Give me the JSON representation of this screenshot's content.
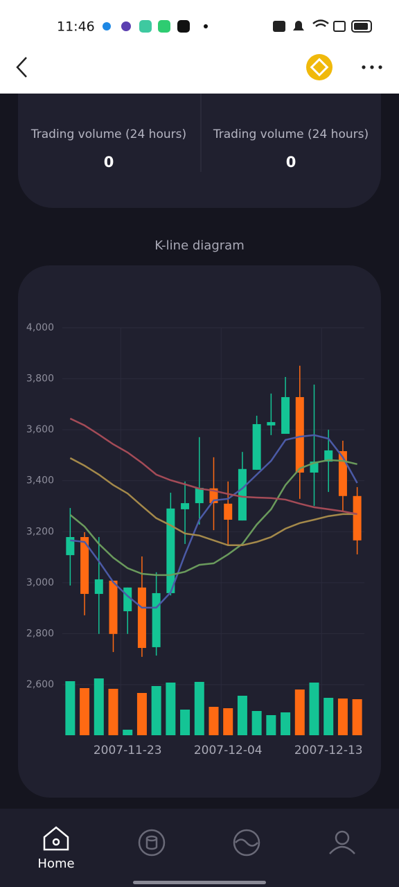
{
  "status_bar": {
    "time": "11:46"
  },
  "stats": [
    {
      "label": "Trading volume (24 hours)",
      "value": 0
    },
    {
      "label": "Trading volume (24 hours)",
      "value": 0
    }
  ],
  "section_title": "K-line diagram",
  "chart_data": {
    "type": "candlestick",
    "categories": [
      null,
      null,
      null,
      null,
      "2007-11-23",
      null,
      null,
      null,
      null,
      null,
      null,
      "2007-12-04",
      null,
      null,
      null,
      null,
      null,
      null,
      "2007-12-13",
      null,
      null
    ],
    "open": [
      3108,
      3179,
      2956,
      3008,
      2888,
      2981,
      2747,
      2959,
      3288,
      3312,
      3370,
      3310,
      3244,
      3443,
      3617,
      3584,
      3728,
      3432,
      3475,
      3516,
      3340
    ],
    "close": [
      3179,
      2956,
      3013,
      2799,
      2981,
      2744,
      2959,
      3291,
      3312,
      3372,
      3312,
      3247,
      3446,
      3622,
      3630,
      3728,
      3432,
      3475,
      3519,
      3340,
      3166
    ],
    "high": [
      3293,
      3198,
      3179,
      3008,
      2981,
      3103,
      3041,
      3353,
      3397,
      3571,
      3492,
      3397,
      3513,
      3655,
      3742,
      3807,
      3851,
      3777,
      3600,
      3557,
      3375
    ],
    "low": [
      2989,
      2872,
      2799,
      2728,
      2799,
      2709,
      2714,
      2950,
      3152,
      3228,
      3206,
      3144,
      3244,
      3443,
      3579,
      3584,
      3329,
      3301,
      3356,
      3280,
      3111
    ],
    "up_color": "#14c495",
    "down_color": "#ff6a13",
    "ylim": [
      2600,
      4000
    ],
    "yticks": [
      {
        "value": 2600,
        "label": "2,600"
      },
      {
        "value": 2800,
        "label": "2,800"
      },
      {
        "value": 3000,
        "label": "3,000"
      },
      {
        "value": 3200,
        "label": "3,200"
      },
      {
        "value": 3400,
        "label": "3,400"
      },
      {
        "value": 3600,
        "label": "3,600"
      },
      {
        "value": 3800,
        "label": "3,800"
      },
      {
        "value": 4000,
        "label": "4,000"
      }
    ],
    "grid": true,
    "moving_averages": [
      {
        "color": "#4b5aa6",
        "values": [
          3166,
          3160,
          3084,
          3002,
          2948,
          2902,
          2902,
          2962,
          3111,
          3247,
          3323,
          3329,
          3370,
          3424,
          3478,
          3560,
          3573,
          3579,
          3565,
          3492,
          3391
        ]
      },
      {
        "color": "#6a9a5c",
        "values": [
          3266,
          3220,
          3152,
          3098,
          3057,
          3035,
          3030,
          3030,
          3043,
          3070,
          3076,
          3111,
          3152,
          3228,
          3288,
          3383,
          3448,
          3470,
          3481,
          3478,
          3465
        ]
      },
      {
        "color": "#a4894a",
        "values": [
          3489,
          3459,
          3424,
          3383,
          3350,
          3301,
          3253,
          3225,
          3193,
          3185,
          3166,
          3147,
          3147,
          3160,
          3179,
          3212,
          3234,
          3247,
          3261,
          3269,
          3269
        ]
      },
      {
        "color": "#a44b57",
        "values": [
          3644,
          3617,
          3581,
          3543,
          3511,
          3470,
          3424,
          3402,
          3386,
          3369,
          3361,
          3348,
          3337,
          3334,
          3332,
          3326,
          3310,
          3296,
          3288,
          3280,
          3269
        ]
      }
    ],
    "volume": {
      "values": [
        78,
        68,
        82,
        67,
        8,
        61,
        71,
        76,
        37,
        77,
        41,
        39,
        57,
        35,
        29,
        33,
        66,
        76,
        54,
        53,
        52
      ],
      "ylim": [
        0,
        90
      ]
    }
  },
  "nav": {
    "active_label": "Home"
  }
}
